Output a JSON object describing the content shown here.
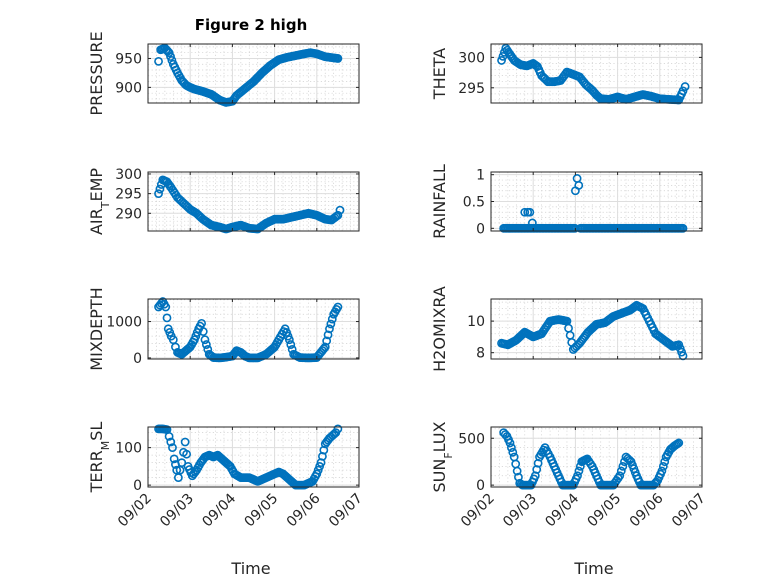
{
  "figure_title": "Figure 2 high",
  "x_axis_label": "Time",
  "colors": {
    "marker": "#0072BD",
    "axis": "#262626",
    "background": "#ffffff"
  },
  "chart_data": [
    {
      "type": "scatter",
      "title": "Figure 2 high",
      "ylabel": "PRESSURE",
      "xlim": [
        0,
        5
      ],
      "ylim": [
        873,
        975
      ],
      "yticks": [
        900,
        950
      ],
      "ytick_labels": [
        "900",
        "950"
      ],
      "xticks": [
        0,
        1,
        2,
        3,
        4,
        5
      ],
      "xtick_labels": [
        "09/02",
        "09/03",
        "09/04",
        "09/05",
        "09/06",
        "09/07"
      ],
      "show_xtick_labels": false,
      "anchors": [
        [
          0.25,
          945
        ],
        [
          0.3,
          965
        ],
        [
          0.4,
          968
        ],
        [
          0.5,
          960
        ],
        [
          0.6,
          940
        ],
        [
          0.7,
          925
        ],
        [
          0.8,
          912
        ],
        [
          0.9,
          904
        ],
        [
          1.0,
          900
        ],
        [
          1.1,
          897
        ],
        [
          1.3,
          893
        ],
        [
          1.5,
          888
        ],
        [
          1.7,
          878
        ],
        [
          1.85,
          874
        ],
        [
          2.0,
          876
        ],
        [
          2.1,
          886
        ],
        [
          2.3,
          898
        ],
        [
          2.5,
          910
        ],
        [
          2.7,
          925
        ],
        [
          2.9,
          938
        ],
        [
          3.1,
          948
        ],
        [
          3.3,
          952
        ],
        [
          3.5,
          955
        ],
        [
          3.7,
          958
        ],
        [
          3.85,
          960
        ],
        [
          4.0,
          958
        ],
        [
          4.2,
          953
        ],
        [
          4.5,
          950
        ]
      ]
    },
    {
      "type": "scatter",
      "ylabel": "THETA",
      "xlim": [
        0,
        5
      ],
      "ylim": [
        292.5,
        302.2
      ],
      "yticks": [
        295,
        300
      ],
      "ytick_labels": [
        "295",
        "300"
      ],
      "xticks": [
        0,
        1,
        2,
        3,
        4,
        5
      ],
      "show_xtick_labels": false,
      "anchors": [
        [
          0.25,
          299.5
        ],
        [
          0.35,
          301.5
        ],
        [
          0.45,
          300.5
        ],
        [
          0.55,
          299.5
        ],
        [
          0.7,
          298.8
        ],
        [
          0.85,
          298.6
        ],
        [
          1.0,
          299
        ],
        [
          1.1,
          298.5
        ],
        [
          1.2,
          297
        ],
        [
          1.35,
          296
        ],
        [
          1.5,
          296
        ],
        [
          1.65,
          296.2
        ],
        [
          1.8,
          297.6
        ],
        [
          1.95,
          297.2
        ],
        [
          2.1,
          296.8
        ],
        [
          2.25,
          295.5
        ],
        [
          2.4,
          294.6
        ],
        [
          2.5,
          293.8
        ],
        [
          2.6,
          293.2
        ],
        [
          2.8,
          293.1
        ],
        [
          3.0,
          293.5
        ],
        [
          3.2,
          293.1
        ],
        [
          3.4,
          293.5
        ],
        [
          3.6,
          293.9
        ],
        [
          3.8,
          293.6
        ],
        [
          4.0,
          293.2
        ],
        [
          4.2,
          293.1
        ],
        [
          4.45,
          293.0
        ],
        [
          4.55,
          294.5
        ],
        [
          4.6,
          295.2
        ]
      ]
    },
    {
      "type": "scatter",
      "ylabel": "AIR_TEMP",
      "ylabel_main": "AIR",
      "ylabel_sub": "T",
      "ylabel_rest": "EMP",
      "xlim": [
        0,
        5
      ],
      "ylim": [
        285.5,
        300.5
      ],
      "yticks": [
        290,
        295,
        300
      ],
      "ytick_labels": [
        "290",
        "295",
        "300"
      ],
      "xticks": [
        0,
        1,
        2,
        3,
        4,
        5
      ],
      "show_xtick_labels": false,
      "anchors": [
        [
          0.25,
          295
        ],
        [
          0.35,
          298.5
        ],
        [
          0.45,
          298
        ],
        [
          0.55,
          296.5
        ],
        [
          0.7,
          294
        ],
        [
          0.85,
          292.5
        ],
        [
          1.0,
          291
        ],
        [
          1.15,
          290
        ],
        [
          1.3,
          288.5
        ],
        [
          1.5,
          287
        ],
        [
          1.7,
          286.5
        ],
        [
          1.85,
          286
        ],
        [
          2.0,
          286.5
        ],
        [
          2.2,
          287
        ],
        [
          2.4,
          286.2
        ],
        [
          2.6,
          286
        ],
        [
          2.8,
          287.5
        ],
        [
          3.0,
          288.5
        ],
        [
          3.2,
          288.5
        ],
        [
          3.4,
          289
        ],
        [
          3.6,
          289.5
        ],
        [
          3.8,
          290
        ],
        [
          4.0,
          289.5
        ],
        [
          4.2,
          288.5
        ],
        [
          4.35,
          288.3
        ],
        [
          4.5,
          289.5
        ],
        [
          4.55,
          290.8
        ]
      ]
    },
    {
      "type": "scatter",
      "ylabel": "RAINFALL",
      "xlim": [
        0,
        5
      ],
      "ylim": [
        -0.05,
        1.05
      ],
      "yticks": [
        0,
        0.5,
        1
      ],
      "ytick_labels": [
        "0",
        "0.5",
        "1"
      ],
      "xticks": [
        0,
        1,
        2,
        3,
        4,
        5
      ],
      "show_xtick_labels": false,
      "anchors": [
        [
          0.3,
          0
        ],
        [
          1.99,
          0
        ],
        [
          2.0,
          0.7
        ],
        [
          2.04,
          0.93
        ],
        [
          2.08,
          0.8
        ],
        [
          2.12,
          0
        ],
        [
          4.55,
          0
        ]
      ],
      "extra_points": [
        [
          0.8,
          0.3
        ],
        [
          0.87,
          0.3
        ],
        [
          0.92,
          0.3
        ],
        [
          0.98,
          0.1
        ]
      ]
    },
    {
      "type": "scatter",
      "ylabel": "MIXDEPTH",
      "xlim": [
        0,
        5
      ],
      "ylim": [
        -30,
        1620
      ],
      "yticks": [
        0,
        1000
      ],
      "ytick_labels": [
        "0",
        "1000"
      ],
      "xticks": [
        0,
        1,
        2,
        3,
        4,
        5
      ],
      "show_xtick_labels": false,
      "anchors": [
        [
          0.25,
          1400
        ],
        [
          0.35,
          1550
        ],
        [
          0.42,
          1400
        ],
        [
          0.48,
          800
        ],
        [
          0.55,
          600
        ],
        [
          0.6,
          500
        ],
        [
          0.65,
          300
        ],
        [
          0.7,
          150
        ],
        [
          0.8,
          100
        ],
        [
          0.9,
          200
        ],
        [
          1.0,
          300
        ],
        [
          1.1,
          500
        ],
        [
          1.2,
          800
        ],
        [
          1.27,
          950
        ],
        [
          1.35,
          500
        ],
        [
          1.45,
          100
        ],
        [
          1.55,
          10
        ],
        [
          1.7,
          0
        ],
        [
          1.85,
          20
        ],
        [
          2.0,
          50
        ],
        [
          2.1,
          200
        ],
        [
          2.2,
          150
        ],
        [
          2.3,
          50
        ],
        [
          2.4,
          0
        ],
        [
          2.6,
          0
        ],
        [
          2.8,
          100
        ],
        [
          3.0,
          300
        ],
        [
          3.1,
          500
        ],
        [
          3.25,
          800
        ],
        [
          3.35,
          500
        ],
        [
          3.45,
          100
        ],
        [
          3.6,
          10
        ],
        [
          3.8,
          0
        ],
        [
          4.0,
          10
        ],
        [
          4.2,
          300
        ],
        [
          4.3,
          800
        ],
        [
          4.4,
          1200
        ],
        [
          4.5,
          1400
        ]
      ]
    },
    {
      "type": "scatter",
      "ylabel": "H2OMIXRA",
      "xlim": [
        0,
        5
      ],
      "ylim": [
        7.6,
        11.4
      ],
      "yticks": [
        8,
        10
      ],
      "ytick_labels": [
        "8",
        "10"
      ],
      "xticks": [
        0,
        1,
        2,
        3,
        4,
        5
      ],
      "show_xtick_labels": false,
      "anchors": [
        [
          0.25,
          8.6
        ],
        [
          0.4,
          8.5
        ],
        [
          0.6,
          8.8
        ],
        [
          0.8,
          9.3
        ],
        [
          1.0,
          9
        ],
        [
          1.2,
          9.2
        ],
        [
          1.4,
          10
        ],
        [
          1.6,
          10.1
        ],
        [
          1.8,
          10
        ],
        [
          1.95,
          8.2
        ],
        [
          2.1,
          8.6
        ],
        [
          2.3,
          9.3
        ],
        [
          2.5,
          9.8
        ],
        [
          2.7,
          9.9
        ],
        [
          2.9,
          10.3
        ],
        [
          3.1,
          10.5
        ],
        [
          3.3,
          10.7
        ],
        [
          3.45,
          11
        ],
        [
          3.6,
          10.8
        ],
        [
          3.75,
          10
        ],
        [
          3.9,
          9.2
        ],
        [
          4.1,
          8.8
        ],
        [
          4.3,
          8.4
        ],
        [
          4.45,
          8.5
        ],
        [
          4.55,
          7.8
        ]
      ]
    },
    {
      "type": "scatter",
      "ylabel": "TERR_MSL",
      "ylabel_main": "TERR",
      "ylabel_sub": "M",
      "ylabel_rest": "SL",
      "xlim": [
        0,
        5
      ],
      "ylim": [
        -5,
        155
      ],
      "yticks": [
        0,
        100
      ],
      "ytick_labels": [
        "0",
        "100"
      ],
      "xticks": [
        0,
        1,
        2,
        3,
        4,
        5
      ],
      "xtick_labels": [
        "09/02",
        "09/03",
        "09/04",
        "09/05",
        "09/06",
        "09/07"
      ],
      "show_xtick_labels": true,
      "anchors": [
        [
          0.25,
          150
        ],
        [
          0.35,
          150
        ],
        [
          0.45,
          148
        ],
        [
          0.5,
          130
        ],
        [
          0.58,
          100
        ],
        [
          0.62,
          70
        ],
        [
          0.68,
          40
        ],
        [
          0.72,
          20
        ],
        [
          0.8,
          60
        ],
        [
          0.88,
          115
        ],
        [
          0.95,
          50
        ],
        [
          1.05,
          25
        ],
        [
          1.15,
          40
        ],
        [
          1.25,
          60
        ],
        [
          1.35,
          75
        ],
        [
          1.45,
          80
        ],
        [
          1.55,
          75
        ],
        [
          1.65,
          80
        ],
        [
          1.75,
          70
        ],
        [
          1.85,
          60
        ],
        [
          1.95,
          50
        ],
        [
          2.05,
          30
        ],
        [
          2.2,
          20
        ],
        [
          2.4,
          20
        ],
        [
          2.6,
          10
        ],
        [
          2.8,
          20
        ],
        [
          3.0,
          30
        ],
        [
          3.1,
          35
        ],
        [
          3.2,
          30
        ],
        [
          3.3,
          20
        ],
        [
          3.4,
          10
        ],
        [
          3.5,
          0
        ],
        [
          3.7,
          0
        ],
        [
          3.9,
          10
        ],
        [
          4.0,
          30
        ],
        [
          4.1,
          60
        ],
        [
          4.2,
          110
        ],
        [
          4.3,
          125
        ],
        [
          4.45,
          140
        ],
        [
          4.5,
          150
        ]
      ]
    },
    {
      "type": "scatter",
      "ylabel": "SUN_FLUX",
      "ylabel_main": "SUN",
      "ylabel_sub": "F",
      "ylabel_rest": "LUX",
      "xlim": [
        0,
        5
      ],
      "ylim": [
        -20,
        620
      ],
      "yticks": [
        0,
        500
      ],
      "ytick_labels": [
        "0",
        "500"
      ],
      "xticks": [
        0,
        1,
        2,
        3,
        4,
        5
      ],
      "xtick_labels": [
        "09/02",
        "09/03",
        "09/04",
        "09/05",
        "09/06",
        "09/07"
      ],
      "show_xtick_labels": true,
      "anchors": [
        [
          0.3,
          560
        ],
        [
          0.38,
          520
        ],
        [
          0.45,
          450
        ],
        [
          0.55,
          300
        ],
        [
          0.62,
          150
        ],
        [
          0.68,
          20
        ],
        [
          0.75,
          0
        ],
        [
          0.95,
          0
        ],
        [
          1.05,
          100
        ],
        [
          1.15,
          300
        ],
        [
          1.28,
          400
        ],
        [
          1.4,
          300
        ],
        [
          1.5,
          200
        ],
        [
          1.6,
          100
        ],
        [
          1.7,
          0
        ],
        [
          1.95,
          0
        ],
        [
          2.05,
          100
        ],
        [
          2.15,
          250
        ],
        [
          2.28,
          280
        ],
        [
          2.4,
          200
        ],
        [
          2.5,
          100
        ],
        [
          2.6,
          0
        ],
        [
          2.9,
          0
        ],
        [
          3.05,
          100
        ],
        [
          3.2,
          300
        ],
        [
          3.32,
          250
        ],
        [
          3.45,
          100
        ],
        [
          3.55,
          0
        ],
        [
          3.85,
          0
        ],
        [
          3.95,
          50
        ],
        [
          4.05,
          150
        ],
        [
          4.15,
          300
        ],
        [
          4.25,
          380
        ],
        [
          4.35,
          420
        ],
        [
          4.45,
          450
        ]
      ]
    }
  ]
}
